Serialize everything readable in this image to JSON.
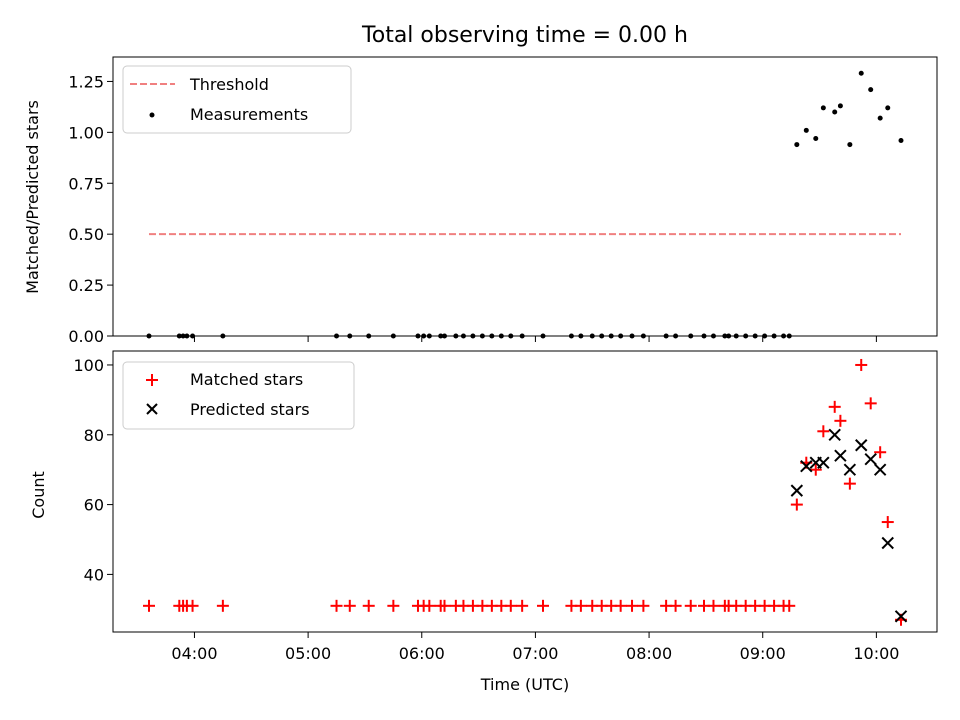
{
  "chart_data": [
    {
      "type": "scatter",
      "title": "Total observing time = 0.00 h",
      "ylabel": "Matched/Predicted stars",
      "xlabel": "",
      "xlim": [
        "03:17",
        "10:32"
      ],
      "ylim": [
        0,
        1.37
      ],
      "yticks": [
        0.0,
        0.25,
        0.5,
        0.75,
        1.0,
        1.25
      ],
      "ytick_labels": [
        "0.00",
        "0.25",
        "0.50",
        "0.75",
        "1.00",
        "1.25"
      ],
      "legend_placement": "upper left",
      "grid": false,
      "series": [
        {
          "name": "Threshold",
          "kind": "dashed-line",
          "color": "#f08080",
          "x": [
            "03:36",
            "10:13"
          ],
          "y": [
            0.5,
            0.5
          ]
        },
        {
          "name": "Measurements",
          "kind": "dots",
          "color": "#000000",
          "x": [
            "03:36",
            "03:52",
            "03:54",
            "03:56",
            "03:59",
            "04:15",
            "05:15",
            "05:22",
            "05:32",
            "05:45",
            "05:58",
            "06:01",
            "06:04",
            "06:10",
            "06:12",
            "06:18",
            "06:22",
            "06:27",
            "06:32",
            "06:37",
            "06:42",
            "06:47",
            "06:53",
            "07:04",
            "07:19",
            "07:24",
            "07:30",
            "07:35",
            "07:40",
            "07:45",
            "07:51",
            "07:57",
            "08:09",
            "08:14",
            "08:22",
            "08:29",
            "08:34",
            "08:40",
            "08:42",
            "08:46",
            "08:51",
            "08:56",
            "09:01",
            "09:06",
            "09:11",
            "09:14",
            "09:18",
            "09:23",
            "09:28",
            "09:32",
            "09:38",
            "09:41",
            "09:46",
            "09:52",
            "09:57",
            "10:02",
            "10:06",
            "10:13"
          ],
          "y": [
            0,
            0,
            0,
            0,
            0,
            0,
            0,
            0,
            0,
            0,
            0,
            0,
            0,
            0,
            0,
            0,
            0,
            0,
            0,
            0,
            0,
            0,
            0,
            0,
            0,
            0,
            0,
            0,
            0,
            0,
            0,
            0,
            0,
            0,
            0,
            0,
            0,
            0,
            0,
            0,
            0,
            0,
            0,
            0,
            0,
            0,
            0.94,
            1.01,
            0.97,
            1.12,
            1.1,
            1.13,
            0.94,
            1.29,
            1.21,
            1.07,
            1.12,
            0.96
          ]
        }
      ]
    },
    {
      "type": "scatter",
      "title": "",
      "ylabel": "Count",
      "xlabel": "Time (UTC)",
      "xlim": [
        "03:17",
        "10:32"
      ],
      "ylim": [
        23.5,
        104
      ],
      "yticks": [
        40,
        60,
        80,
        100
      ],
      "ytick_labels": [
        "40",
        "60",
        "80",
        "100"
      ],
      "xticks": [
        "04:00",
        "05:00",
        "06:00",
        "07:00",
        "08:00",
        "09:00",
        "10:00"
      ],
      "xtick_labels": [
        "04:00",
        "05:00",
        "06:00",
        "07:00",
        "08:00",
        "09:00",
        "10:00"
      ],
      "legend_placement": "upper left",
      "grid": false,
      "series": [
        {
          "name": "Matched stars",
          "kind": "plus",
          "color": "#ff0000",
          "x": [
            "03:36",
            "03:52",
            "03:54",
            "03:56",
            "03:59",
            "04:15",
            "05:15",
            "05:22",
            "05:32",
            "05:45",
            "05:58",
            "06:01",
            "06:04",
            "06:10",
            "06:12",
            "06:18",
            "06:22",
            "06:27",
            "06:32",
            "06:37",
            "06:42",
            "06:47",
            "06:53",
            "07:04",
            "07:19",
            "07:24",
            "07:30",
            "07:35",
            "07:40",
            "07:45",
            "07:51",
            "07:57",
            "08:09",
            "08:14",
            "08:22",
            "08:29",
            "08:34",
            "08:40",
            "08:42",
            "08:46",
            "08:51",
            "08:56",
            "09:01",
            "09:06",
            "09:11",
            "09:14",
            "09:18",
            "09:23",
            "09:28",
            "09:32",
            "09:38",
            "09:41",
            "09:46",
            "09:52",
            "09:57",
            "10:02",
            "10:06",
            "10:13"
          ],
          "y": [
            31,
            31,
            31,
            31,
            31,
            31,
            31,
            31,
            31,
            31,
            31,
            31,
            31,
            31,
            31,
            31,
            31,
            31,
            31,
            31,
            31,
            31,
            31,
            31,
            31,
            31,
            31,
            31,
            31,
            31,
            31,
            31,
            31,
            31,
            31,
            31,
            31,
            31,
            31,
            31,
            31,
            31,
            31,
            31,
            31,
            31,
            60,
            72,
            70,
            81,
            88,
            84,
            66,
            100,
            89,
            75,
            55,
            27
          ]
        },
        {
          "name": "Predicted stars",
          "kind": "x",
          "color": "#000000",
          "x": [
            "09:18",
            "09:23",
            "09:28",
            "09:32",
            "09:38",
            "09:41",
            "09:46",
            "09:52",
            "09:57",
            "10:02",
            "10:06",
            "10:13"
          ],
          "y": [
            64,
            71,
            72,
            72,
            80,
            74,
            70,
            77,
            73,
            70,
            49,
            28
          ]
        }
      ]
    }
  ]
}
